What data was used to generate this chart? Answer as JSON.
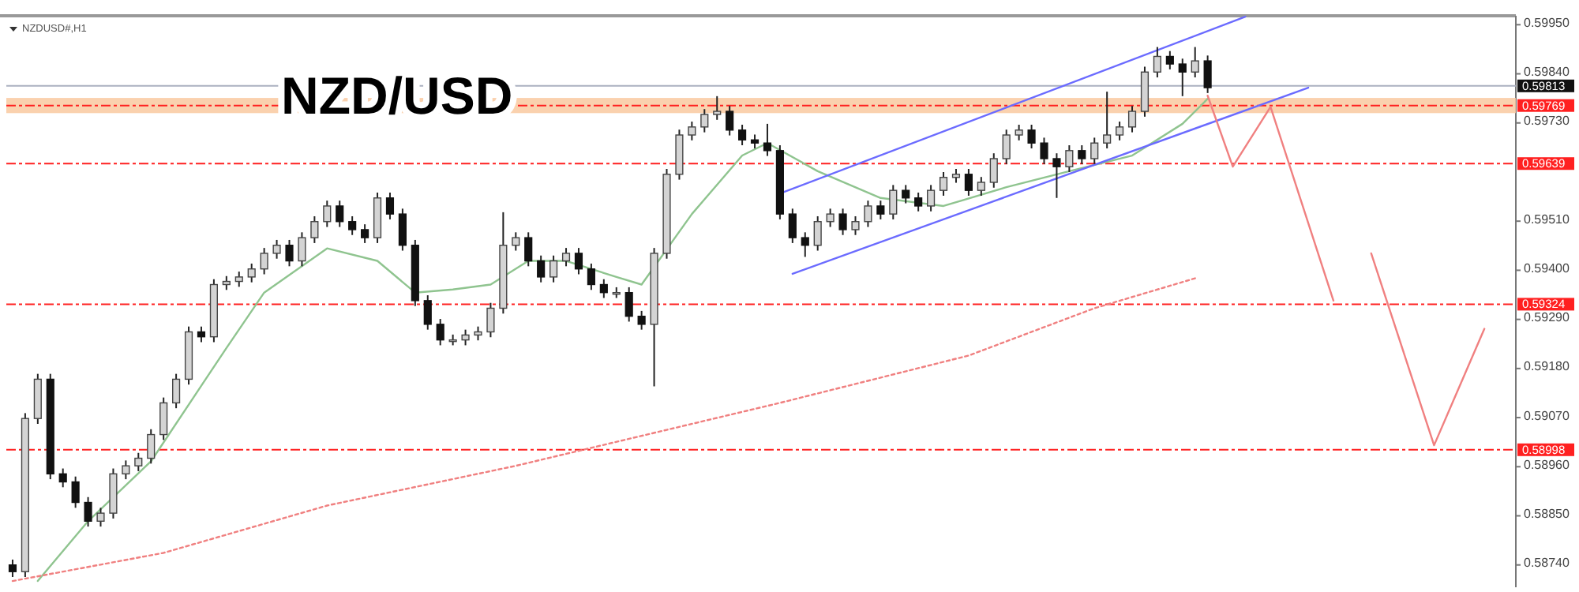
{
  "chart_data": {
    "type": "candlestick",
    "title": "NZD/USD",
    "annotations": [
      "NZDUSD#,H1"
    ],
    "categories": [
      null,
      null,
      null,
      null,
      null,
      null,
      null,
      null,
      null,
      null,
      null,
      null,
      null,
      null,
      null,
      null,
      null,
      null,
      null,
      null,
      null,
      null,
      null,
      null,
      null,
      null,
      null,
      null,
      null,
      null,
      null,
      null,
      null,
      null,
      null,
      null,
      null,
      null,
      null,
      null,
      null,
      null,
      null,
      null,
      null,
      null,
      null,
      null,
      null,
      null,
      null,
      null,
      null,
      null,
      null,
      null,
      null,
      null,
      null,
      null,
      null,
      null,
      null,
      null,
      null,
      null,
      null,
      null,
      null,
      null,
      null,
      null,
      null,
      null,
      null,
      null,
      null,
      null,
      null,
      null,
      null,
      null,
      null,
      null,
      null,
      null,
      null,
      null,
      null,
      null,
      null,
      null,
      null,
      null,
      null,
      null,
      null,
      null,
      null,
      null,
      null,
      null,
      null,
      null,
      null,
      null,
      null,
      null,
      null,
      null,
      null,
      null,
      null,
      null,
      null,
      null,
      null,
      null,
      null,
      null
    ],
    "ohlc": [
      [
        0.5874,
        0.58752,
        0.58713,
        0.58725
      ],
      [
        0.58725,
        0.5908,
        0.58713,
        0.59068
      ],
      [
        0.59068,
        0.59168,
        0.59056,
        0.59156
      ],
      [
        0.59156,
        0.59168,
        0.58932,
        0.58944
      ],
      [
        0.58944,
        0.58956,
        0.58914,
        0.58926
      ],
      [
        0.58926,
        0.58938,
        0.58868,
        0.5888
      ],
      [
        0.5888,
        0.58892,
        0.58826,
        0.58838
      ],
      [
        0.58838,
        0.58868,
        0.58826,
        0.58856
      ],
      [
        0.58856,
        0.58956,
        0.58844,
        0.58944
      ],
      [
        0.58944,
        0.58974,
        0.58932,
        0.58962
      ],
      [
        0.58962,
        0.58991,
        0.5895,
        0.58979
      ],
      [
        0.58979,
        0.59044,
        0.58967,
        0.59032
      ],
      [
        0.59032,
        0.59115,
        0.5902,
        0.59103
      ],
      [
        0.59103,
        0.59168,
        0.59091,
        0.59156
      ],
      [
        0.59156,
        0.59274,
        0.59144,
        0.59262
      ],
      [
        0.59262,
        0.59274,
        0.59239,
        0.59251
      ],
      [
        0.59251,
        0.5938,
        0.59239,
        0.59368
      ],
      [
        0.59368,
        0.59387,
        0.59356,
        0.59375
      ],
      [
        0.59375,
        0.59397,
        0.59363,
        0.59385
      ],
      [
        0.59385,
        0.59415,
        0.59373,
        0.59403
      ],
      [
        0.59403,
        0.5945,
        0.59391,
        0.59438
      ],
      [
        0.59438,
        0.59468,
        0.59426,
        0.59456
      ],
      [
        0.59456,
        0.59468,
        0.59409,
        0.59421
      ],
      [
        0.59421,
        0.59485,
        0.59409,
        0.59473
      ],
      [
        0.59473,
        0.59521,
        0.59461,
        0.59509
      ],
      [
        0.59509,
        0.59556,
        0.59497,
        0.59544
      ],
      [
        0.59544,
        0.59556,
        0.59497,
        0.59509
      ],
      [
        0.59509,
        0.59521,
        0.59479,
        0.59491
      ],
      [
        0.59491,
        0.59503,
        0.59461,
        0.59473
      ],
      [
        0.59473,
        0.59574,
        0.59461,
        0.59562
      ],
      [
        0.59562,
        0.59574,
        0.59514,
        0.59526
      ],
      [
        0.59526,
        0.59538,
        0.59444,
        0.59456
      ],
      [
        0.59456,
        0.59468,
        0.5932,
        0.59332
      ],
      [
        0.59332,
        0.59344,
        0.59267,
        0.59279
      ],
      [
        0.59279,
        0.59291,
        0.59232,
        0.59244
      ],
      [
        0.59244,
        0.59256,
        0.59232,
        0.59244
      ],
      [
        0.59244,
        0.59267,
        0.59232,
        0.59255
      ],
      [
        0.59255,
        0.59274,
        0.59243,
        0.59262
      ],
      [
        0.59262,
        0.59327,
        0.5925,
        0.59315
      ],
      [
        0.59315,
        0.5953,
        0.59303,
        0.59456
      ],
      [
        0.59456,
        0.59485,
        0.59444,
        0.59473
      ],
      [
        0.59473,
        0.59485,
        0.59409,
        0.59421
      ],
      [
        0.59421,
        0.59433,
        0.59373,
        0.59385
      ],
      [
        0.59385,
        0.59433,
        0.59373,
        0.59421
      ],
      [
        0.59421,
        0.5945,
        0.59409,
        0.59438
      ],
      [
        0.59438,
        0.5945,
        0.59391,
        0.59403
      ],
      [
        0.59403,
        0.59415,
        0.59356,
        0.59368
      ],
      [
        0.59368,
        0.5938,
        0.59338,
        0.5935
      ],
      [
        0.5935,
        0.59362,
        0.59338,
        0.5935
      ],
      [
        0.5935,
        0.59362,
        0.59285,
        0.59297
      ],
      [
        0.59297,
        0.59309,
        0.59267,
        0.59279
      ],
      [
        0.59279,
        0.5945,
        0.5914,
        0.59438
      ],
      [
        0.59438,
        0.59627,
        0.59426,
        0.59615
      ],
      [
        0.59615,
        0.59715,
        0.59603,
        0.59703
      ],
      [
        0.59703,
        0.59733,
        0.59691,
        0.59721
      ],
      [
        0.59721,
        0.59761,
        0.59709,
        0.59749
      ],
      [
        0.59749,
        0.5979,
        0.59737,
        0.59756
      ],
      [
        0.59756,
        0.59768,
        0.59702,
        0.59714
      ],
      [
        0.59714,
        0.59726,
        0.5968,
        0.59692
      ],
      [
        0.59692,
        0.59704,
        0.59673,
        0.59685
      ],
      [
        0.59685,
        0.59728,
        0.59656,
        0.59668
      ],
      [
        0.59668,
        0.5968,
        0.59514,
        0.59526
      ],
      [
        0.59526,
        0.59538,
        0.59461,
        0.59473
      ],
      [
        0.59473,
        0.59485,
        0.5943,
        0.59456
      ],
      [
        0.59456,
        0.59521,
        0.59444,
        0.59509
      ],
      [
        0.59509,
        0.59538,
        0.59497,
        0.59526
      ],
      [
        0.59526,
        0.59538,
        0.59479,
        0.59491
      ],
      [
        0.59491,
        0.59521,
        0.59479,
        0.59509
      ],
      [
        0.59509,
        0.59556,
        0.59497,
        0.59544
      ],
      [
        0.59544,
        0.59556,
        0.59514,
        0.59526
      ],
      [
        0.59526,
        0.59591,
        0.59514,
        0.59579
      ],
      [
        0.59579,
        0.59591,
        0.5955,
        0.59562
      ],
      [
        0.59562,
        0.59574,
        0.59532,
        0.59544
      ],
      [
        0.59544,
        0.59591,
        0.59532,
        0.59579
      ],
      [
        0.59579,
        0.5962,
        0.59567,
        0.59608
      ],
      [
        0.59608,
        0.59627,
        0.59596,
        0.59615
      ],
      [
        0.59615,
        0.59627,
        0.59567,
        0.59579
      ],
      [
        0.59579,
        0.59609,
        0.59567,
        0.59597
      ],
      [
        0.59597,
        0.59662,
        0.59585,
        0.5965
      ],
      [
        0.5965,
        0.59715,
        0.59638,
        0.59703
      ],
      [
        0.59703,
        0.59726,
        0.59691,
        0.59714
      ],
      [
        0.59714,
        0.59726,
        0.59673,
        0.59685
      ],
      [
        0.59685,
        0.59697,
        0.59638,
        0.5965
      ],
      [
        0.5965,
        0.59662,
        0.59562,
        0.59632
      ],
      [
        0.59632,
        0.5968,
        0.5962,
        0.59668
      ],
      [
        0.59668,
        0.5968,
        0.59638,
        0.5965
      ],
      [
        0.5965,
        0.59697,
        0.59638,
        0.59685
      ],
      [
        0.59685,
        0.598,
        0.59673,
        0.59703
      ],
      [
        0.59703,
        0.59733,
        0.59691,
        0.59721
      ],
      [
        0.59721,
        0.59768,
        0.59709,
        0.59756
      ],
      [
        0.59756,
        0.59856,
        0.59744,
        0.59844
      ],
      [
        0.59844,
        0.599,
        0.59832,
        0.59879
      ],
      [
        0.59879,
        0.59891,
        0.5985,
        0.59862
      ],
      [
        0.59862,
        0.59874,
        0.5979,
        0.59844
      ],
      [
        0.59844,
        0.599,
        0.59832,
        0.59869
      ],
      [
        0.59869,
        0.59881,
        0.59797,
        0.59809
      ],
      null,
      null,
      null,
      null,
      null,
      null,
      null,
      null,
      null,
      null,
      null,
      null,
      null,
      null,
      null,
      null,
      null,
      null,
      null,
      null,
      null,
      null,
      null,
      null
    ],
    "series": [
      {
        "type": "line",
        "color": "#8fc48f",
        "line_style": "solid",
        "values": [
          null,
          null,
          0.58704,
          null,
          null,
          null,
          0.58838,
          null,
          null,
          null,
          null,
          0.58972,
          null,
          null,
          null,
          null,
          null,
          0.59226,
          null,
          null,
          0.5935,
          null,
          null,
          null,
          null,
          0.59449,
          null,
          null,
          null,
          0.59421,
          null,
          null,
          0.5935,
          null,
          null,
          0.59357,
          null,
          null,
          0.59368,
          null,
          null,
          0.59421,
          null,
          null,
          0.59421,
          null,
          null,
          null,
          0.59385,
          null,
          0.59368,
          null,
          null,
          null,
          0.59526,
          null,
          null,
          null,
          0.59657,
          null,
          0.59685,
          null,
          null,
          null,
          0.59622,
          null,
          null,
          null,
          null,
          0.59562,
          null,
          null,
          null,
          null,
          0.59544,
          null,
          null,
          null,
          null,
          0.59586,
          null,
          null,
          null,
          null,
          0.59622,
          null,
          null,
          null,
          null,
          0.59657,
          null,
          null,
          null,
          0.59728,
          null,
          0.59784,
          null,
          null,
          null,
          null,
          null,
          null,
          null,
          null,
          null,
          null,
          null,
          null,
          null,
          null,
          null,
          null,
          null,
          null,
          null,
          null,
          null,
          null,
          null,
          null
        ]
      },
      {
        "type": "line",
        "color": "#f08080",
        "line_style": "dotted",
        "values": [
          0.58704,
          null,
          null,
          null,
          null,
          null,
          null,
          null,
          null,
          null,
          null,
          null,
          0.58767,
          null,
          null,
          null,
          null,
          null,
          null,
          null,
          null,
          null,
          null,
          null,
          null,
          0.58873,
          null,
          null,
          null,
          null,
          null,
          null,
          null,
          null,
          null,
          null,
          null,
          null,
          null,
          null,
          0.58962,
          null,
          null,
          null,
          null,
          null,
          null,
          null,
          null,
          null,
          null,
          null,
          null,
          null,
          null,
          null,
          null,
          null,
          null,
          null,
          null,
          0.59103,
          null,
          null,
          null,
          null,
          null,
          null,
          null,
          null,
          null,
          null,
          null,
          null,
          null,
          null,
          0.59209,
          null,
          null,
          null,
          null,
          null,
          null,
          null,
          null,
          null,
          0.59315,
          null,
          null,
          null,
          null,
          null,
          null,
          null,
          0.59382,
          null,
          null,
          null,
          null,
          null,
          null,
          null,
          null,
          null,
          null,
          null,
          null,
          null,
          null,
          null,
          null,
          null,
          null,
          null,
          null,
          null,
          null,
          null,
          null,
          null
        ]
      },
      {
        "type": "line",
        "color": "#6b6bff",
        "line_style": "solid",
        "values": [
          null,
          null,
          null,
          null,
          null,
          null,
          null,
          null,
          null,
          null,
          null,
          null,
          null,
          null,
          null,
          null,
          null,
          null,
          null,
          null,
          null,
          null,
          null,
          null,
          null,
          null,
          null,
          null,
          null,
          null,
          null,
          null,
          null,
          null,
          null,
          null,
          null,
          null,
          null,
          null,
          null,
          null,
          null,
          null,
          null,
          null,
          null,
          null,
          null,
          null,
          null,
          null,
          null,
          null,
          null,
          null,
          null,
          null,
          null,
          null,
          null,
          0.59572,
          null,
          null,
          null,
          null,
          null,
          null,
          null,
          null,
          null,
          null,
          null,
          null,
          null,
          null,
          null,
          null,
          null,
          null,
          null,
          null,
          null,
          null,
          null,
          null,
          null,
          null,
          null,
          null,
          null,
          null,
          null,
          null,
          null,
          null,
          null,
          null,
          0.59968,
          null,
          null,
          null,
          null,
          null,
          null,
          null,
          null,
          null,
          null,
          null,
          null,
          null,
          null,
          null,
          null,
          null,
          null,
          null,
          null,
          null
        ]
      },
      {
        "type": "line",
        "color": "#6b6bff",
        "line_style": "solid",
        "values": [
          null,
          null,
          null,
          null,
          null,
          null,
          null,
          null,
          null,
          null,
          null,
          null,
          null,
          null,
          null,
          null,
          null,
          null,
          null,
          null,
          null,
          null,
          null,
          null,
          null,
          null,
          null,
          null,
          null,
          null,
          null,
          null,
          null,
          null,
          null,
          null,
          null,
          null,
          null,
          null,
          null,
          null,
          null,
          null,
          null,
          null,
          null,
          null,
          null,
          null,
          null,
          null,
          null,
          null,
          null,
          null,
          null,
          null,
          null,
          null,
          null,
          null,
          0.59392,
          null,
          null,
          null,
          null,
          null,
          null,
          null,
          null,
          null,
          null,
          null,
          null,
          null,
          null,
          null,
          null,
          null,
          null,
          null,
          null,
          null,
          null,
          null,
          null,
          null,
          null,
          null,
          null,
          null,
          null,
          null,
          null,
          null,
          null,
          null,
          null,
          null,
          null,
          null,
          null,
          0.59809,
          null,
          null,
          null,
          null,
          null,
          null,
          null,
          null,
          null,
          null,
          null,
          null,
          null,
          null,
          null,
          null
        ]
      },
      {
        "type": "line",
        "color": "#f08080",
        "line_style": "solid",
        "values": [
          null,
          null,
          null,
          null,
          null,
          null,
          null,
          null,
          null,
          null,
          null,
          null,
          null,
          null,
          null,
          null,
          null,
          null,
          null,
          null,
          null,
          null,
          null,
          null,
          null,
          null,
          null,
          null,
          null,
          null,
          null,
          null,
          null,
          null,
          null,
          null,
          null,
          null,
          null,
          null,
          null,
          null,
          null,
          null,
          null,
          null,
          null,
          null,
          null,
          null,
          null,
          null,
          null,
          null,
          null,
          null,
          null,
          null,
          null,
          null,
          null,
          null,
          null,
          null,
          null,
          null,
          null,
          null,
          null,
          null,
          null,
          null,
          null,
          null,
          null,
          null,
          null,
          null,
          null,
          null,
          null,
          null,
          null,
          null,
          null,
          null,
          null,
          null,
          null,
          null,
          null,
          null,
          null,
          null,
          null,
          0.59791,
          null,
          0.59632,
          null,
          null,
          0.59766,
          null,
          null,
          null,
          null,
          0.59332,
          null,
          null,
          null,
          null,
          null,
          null,
          null,
          null,
          null,
          null,
          null,
          null,
          null,
          null
        ]
      },
      {
        "type": "line",
        "color": "#f08080",
        "line_style": "solid",
        "values": [
          null,
          null,
          null,
          null,
          null,
          null,
          null,
          null,
          null,
          null,
          null,
          null,
          null,
          null,
          null,
          null,
          null,
          null,
          null,
          null,
          null,
          null,
          null,
          null,
          null,
          null,
          null,
          null,
          null,
          null,
          null,
          null,
          null,
          null,
          null,
          null,
          null,
          null,
          null,
          null,
          null,
          null,
          null,
          null,
          null,
          null,
          null,
          null,
          null,
          null,
          null,
          null,
          null,
          null,
          null,
          null,
          null,
          null,
          null,
          null,
          null,
          null,
          null,
          null,
          null,
          null,
          null,
          null,
          null,
          null,
          null,
          null,
          null,
          null,
          null,
          null,
          null,
          null,
          null,
          null,
          null,
          null,
          null,
          null,
          null,
          null,
          null,
          null,
          null,
          null,
          null,
          null,
          null,
          null,
          null,
          null,
          null,
          null,
          null,
          null,
          null,
          null,
          null,
          null,
          null,
          null,
          null,
          null,
          0.59438,
          null,
          null,
          null,
          null,
          0.59008,
          null,
          null,
          null,
          0.59269,
          null,
          null
        ]
      }
    ],
    "ylim": [
      0.5869,
      0.5997
    ],
    "yticks": [
      {
        "value": 0.5995,
        "label": "0.59950"
      },
      {
        "value": 0.5984,
        "label": "0.59840"
      },
      {
        "value": 0.5973,
        "label": "0.59730"
      },
      {
        "value": 0.5951,
        "label": "0.59510"
      },
      {
        "value": 0.594,
        "label": "0.59400"
      },
      {
        "value": 0.5929,
        "label": "0.59290"
      },
      {
        "value": 0.5918,
        "label": "0.59180"
      },
      {
        "value": 0.5907,
        "label": "0.59070"
      },
      {
        "value": 0.5896,
        "label": "0.58960"
      },
      {
        "value": 0.5885,
        "label": "0.58850"
      },
      {
        "value": 0.5874,
        "label": "0.58740"
      }
    ],
    "ref_lines": [
      {
        "axis": "y",
        "value": 0.59813,
        "label": "0.59813",
        "color": "#aab0c0",
        "line_style": "solid"
      },
      {
        "axis": "y",
        "value": 0.59769,
        "label": "0.59769",
        "color": "#ff2020",
        "line_style": "dashed"
      },
      {
        "axis": "y",
        "value": 0.59639,
        "label": "0.59639",
        "color": "#ff2020",
        "line_style": "dashed"
      },
      {
        "axis": "y",
        "value": 0.59324,
        "label": "0.59324",
        "color": "#ff2020",
        "line_style": "dashed"
      },
      {
        "axis": "y",
        "value": 0.58998,
        "label": "0.58998",
        "color": "#ff2020",
        "line_style": "dashed"
      }
    ],
    "bands": [
      {
        "axis": "y",
        "from": 0.59752,
        "to": 0.59786,
        "color": "#f9c9a0"
      }
    ]
  }
}
